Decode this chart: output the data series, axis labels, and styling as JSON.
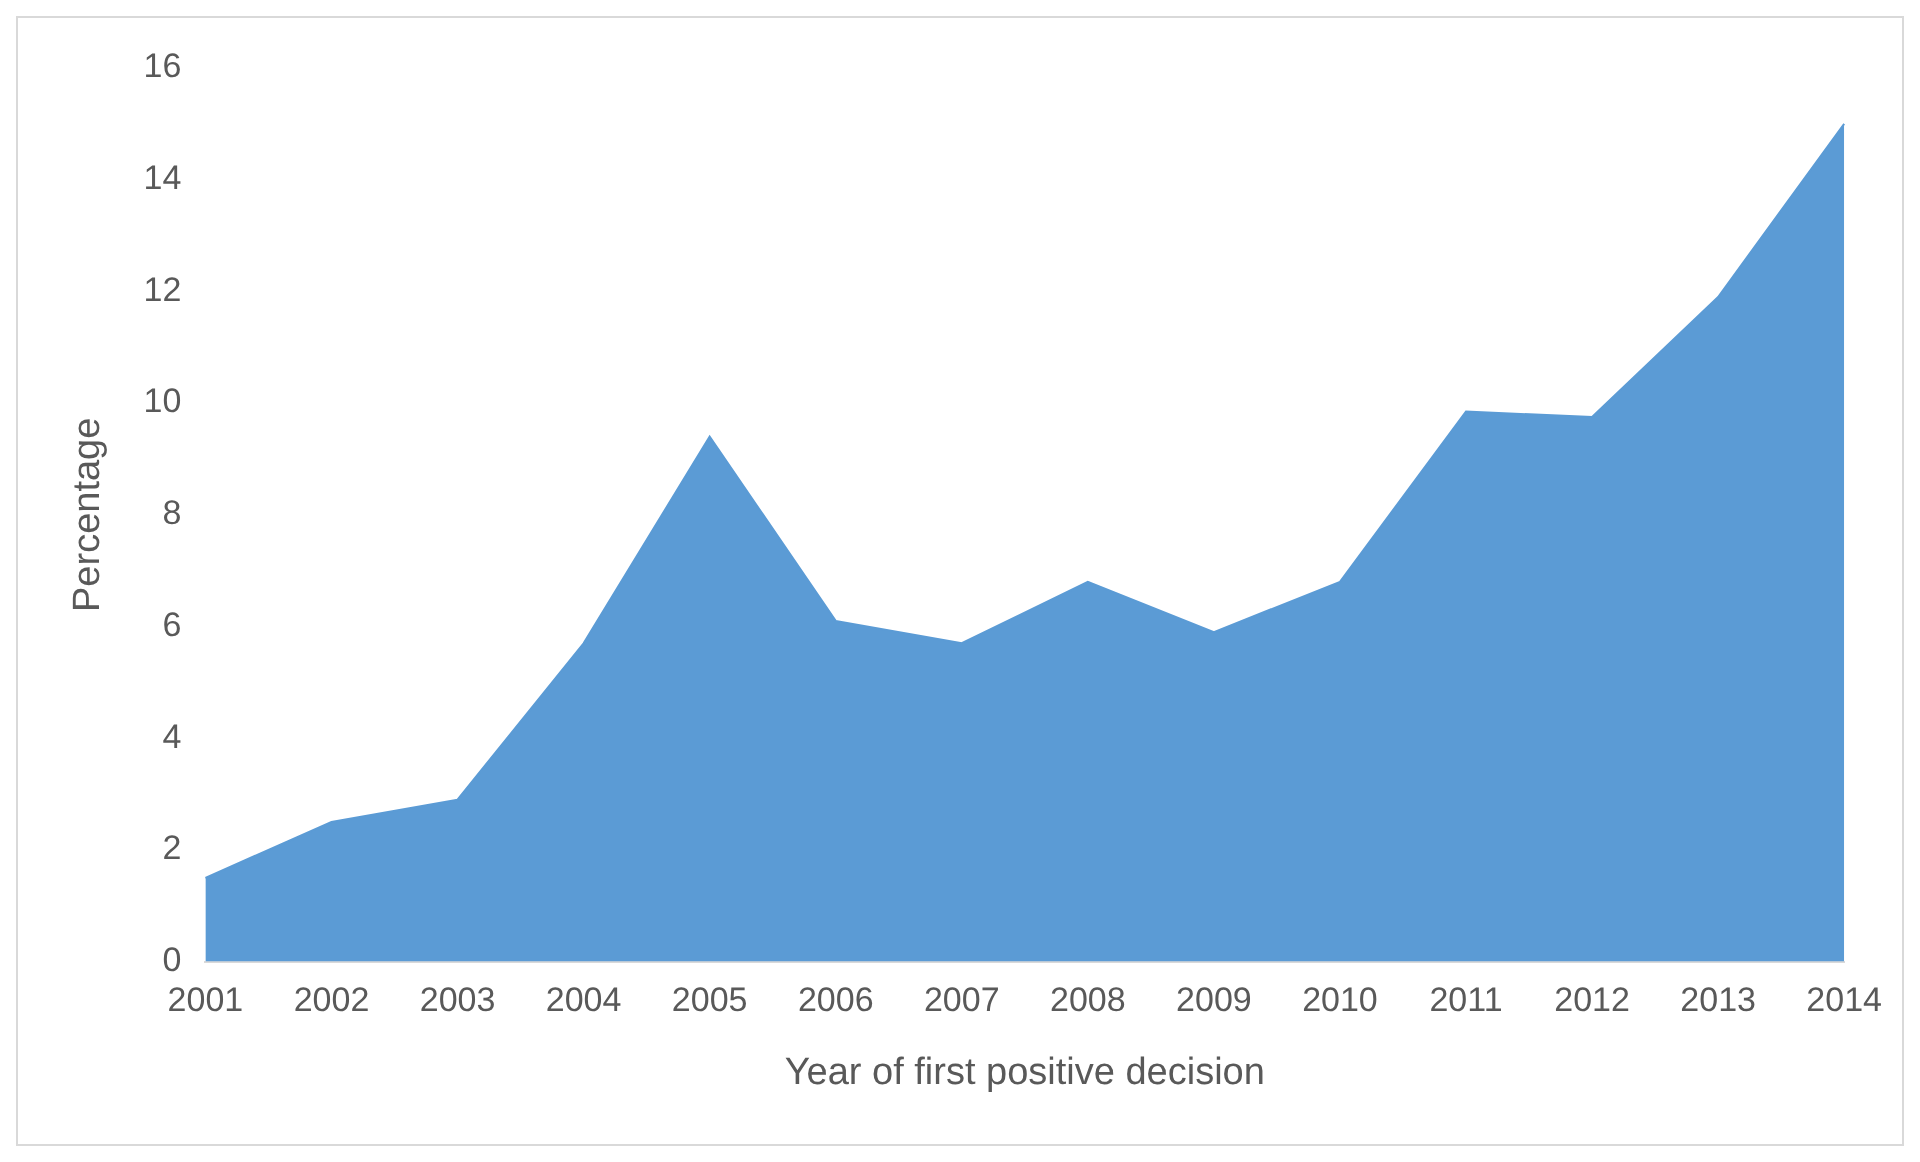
{
  "chart_data": {
    "type": "area",
    "xlabel": "Year of first positive decision",
    "ylabel": "Percentage",
    "categories": [
      "2001",
      "2002",
      "2003",
      "2004",
      "2005",
      "2006",
      "2007",
      "2008",
      "2009",
      "2010",
      "2011",
      "2012",
      "2013",
      "2014"
    ],
    "values": [
      1.5,
      2.5,
      2.9,
      5.7,
      9.4,
      6.1,
      5.7,
      6.8,
      5.9,
      6.8,
      9.85,
      9.75,
      11.9,
      15.0
    ],
    "color": "#5b9bd5",
    "ylim": [
      0,
      16
    ],
    "yticks": [
      0,
      2,
      4,
      6,
      8,
      10,
      12,
      14,
      16
    ],
    "grid": false,
    "legend": false
  }
}
